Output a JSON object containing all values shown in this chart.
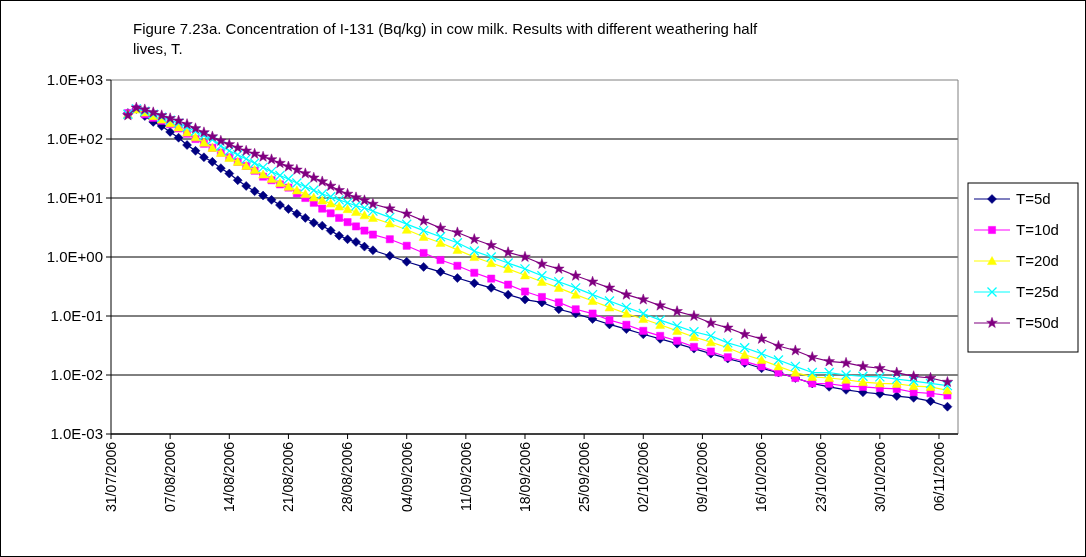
{
  "chart_data": {
    "type": "line",
    "title": "Figure 7.23a. Concentration of I-131 (Bq/kg) in cow milk. Results with different weathering half lives, T.",
    "x": [
      "2006-08-02",
      "2006-08-03",
      "2006-08-04",
      "2006-08-05",
      "2006-08-06",
      "2006-08-07",
      "2006-08-08",
      "2006-08-09",
      "2006-08-10",
      "2006-08-11",
      "2006-08-12",
      "2006-08-13",
      "2006-08-14",
      "2006-08-15",
      "2006-08-16",
      "2006-08-17",
      "2006-08-18",
      "2006-08-19",
      "2006-08-20",
      "2006-08-21",
      "2006-08-22",
      "2006-08-23",
      "2006-08-24",
      "2006-08-25",
      "2006-08-26",
      "2006-08-27",
      "2006-08-28",
      "2006-08-29",
      "2006-08-30",
      "2006-08-31",
      "2006-09-02",
      "2006-09-04",
      "2006-09-06",
      "2006-09-08",
      "2006-09-10",
      "2006-09-12",
      "2006-09-14",
      "2006-09-16",
      "2006-09-18",
      "2006-09-20",
      "2006-09-22",
      "2006-09-24",
      "2006-09-26",
      "2006-09-28",
      "2006-09-30",
      "2006-10-02",
      "2006-10-04",
      "2006-10-06",
      "2006-10-08",
      "2006-10-10",
      "2006-10-12",
      "2006-10-14",
      "2006-10-16",
      "2006-10-18",
      "2006-10-20",
      "2006-10-22",
      "2006-10-24",
      "2006-10-26",
      "2006-10-28",
      "2006-10-30",
      "2006-11-01",
      "2006-11-03",
      "2006-11-05",
      "2006-11-07"
    ],
    "series": [
      {
        "name": "T=5d",
        "color": "#000080",
        "marker": "diamond",
        "values": [
          275,
          324,
          245,
          195,
          166,
          132,
          105,
          79,
          63,
          49,
          41,
          32,
          26,
          20,
          16,
          13,
          11,
          9.3,
          7.6,
          6.5,
          5.4,
          4.6,
          3.8,
          3.4,
          2.8,
          2.3,
          2.0,
          1.8,
          1.5,
          1.3,
          1.05,
          0.83,
          0.68,
          0.56,
          0.44,
          0.36,
          0.3,
          0.23,
          0.19,
          0.17,
          0.13,
          0.11,
          0.089,
          0.072,
          0.06,
          0.049,
          0.041,
          0.034,
          0.028,
          0.023,
          0.019,
          0.016,
          0.013,
          0.011,
          0.0089,
          0.0072,
          0.0063,
          0.0056,
          0.0051,
          0.0048,
          0.0044,
          0.0041,
          0.0036,
          0.0029
        ]
      },
      {
        "name": "T=10d",
        "color": "#ff00ff",
        "marker": "square",
        "values": [
          275,
          324,
          263,
          229,
          204,
          178,
          151,
          123,
          100,
          83,
          71,
          59,
          49,
          41,
          35,
          29,
          23,
          20,
          17,
          15,
          12,
          10,
          8.3,
          6.6,
          5.5,
          4.6,
          3.9,
          3.3,
          2.8,
          2.4,
          2.0,
          1.55,
          1.17,
          0.89,
          0.71,
          0.54,
          0.43,
          0.34,
          0.26,
          0.21,
          0.17,
          0.13,
          0.11,
          0.085,
          0.071,
          0.056,
          0.046,
          0.038,
          0.03,
          0.025,
          0.02,
          0.017,
          0.014,
          0.011,
          0.0089,
          0.0072,
          0.0071,
          0.0065,
          0.0063,
          0.006,
          0.0058,
          0.0051,
          0.0049,
          0.0045
        ]
      },
      {
        "name": "T=20d",
        "color": "#ffff00",
        "marker": "triangle",
        "values": [
          263,
          316,
          282,
          245,
          214,
          186,
          158,
          129,
          107,
          87,
          71,
          58,
          48,
          41,
          35,
          30,
          25,
          21,
          18,
          15.5,
          13.5,
          11.7,
          10.2,
          9.1,
          8.1,
          7.2,
          6.5,
          5.8,
          5.1,
          4.6,
          3.7,
          2.9,
          2.2,
          1.74,
          1.32,
          1.0,
          0.79,
          0.63,
          0.49,
          0.38,
          0.3,
          0.23,
          0.18,
          0.14,
          0.11,
          0.089,
          0.071,
          0.056,
          0.044,
          0.036,
          0.029,
          0.022,
          0.018,
          0.014,
          0.011,
          0.0093,
          0.0089,
          0.0083,
          0.0076,
          0.0072,
          0.0071,
          0.0065,
          0.0063,
          0.0055
        ]
      },
      {
        "name": "T=25d",
        "color": "#00ffff",
        "marker": "cross",
        "values": [
          263,
          324,
          295,
          263,
          234,
          209,
          186,
          158,
          135,
          115,
          98,
          76,
          63,
          54,
          46,
          39,
          33,
          28,
          24,
          21,
          18,
          15.5,
          13.5,
          11.7,
          10.5,
          9.3,
          8.3,
          7.4,
          6.8,
          6.0,
          4.7,
          3.6,
          2.8,
          2.2,
          1.74,
          1.26,
          1.0,
          0.79,
          0.63,
          0.48,
          0.38,
          0.3,
          0.23,
          0.18,
          0.14,
          0.11,
          0.085,
          0.068,
          0.054,
          0.046,
          0.035,
          0.029,
          0.023,
          0.018,
          0.014,
          0.011,
          0.011,
          0.01,
          0.0095,
          0.0093,
          0.0085,
          0.0079,
          0.0072,
          0.0066
        ]
      },
      {
        "name": "T=50d",
        "color": "#800080",
        "marker": "star",
        "values": [
          251,
          339,
          316,
          282,
          251,
          224,
          204,
          178,
          151,
          129,
          110,
          93,
          81,
          71,
          63,
          56,
          50,
          45,
          39,
          34,
          30,
          26,
          22,
          19,
          16,
          13.5,
          11.7,
          10.2,
          9.1,
          7.9,
          6.6,
          5.4,
          4.1,
          3.1,
          2.6,
          2.0,
          1.58,
          1.2,
          1.0,
          0.76,
          0.63,
          0.48,
          0.38,
          0.3,
          0.23,
          0.19,
          0.15,
          0.12,
          0.1,
          0.076,
          0.063,
          0.049,
          0.041,
          0.031,
          0.026,
          0.02,
          0.017,
          0.016,
          0.014,
          0.013,
          0.011,
          0.0095,
          0.0089,
          0.0076
        ]
      }
    ],
    "log": "y",
    "grid": "y",
    "legend": "right",
    "line_style": "solid",
    "ylim": [
      0.001,
      1000
    ],
    "yticks": [
      {
        "value": 0.001,
        "label": "1.0E-03"
      },
      {
        "value": 0.01,
        "label": "1.0E-02"
      },
      {
        "value": 0.1,
        "label": "1.0E-01"
      },
      {
        "value": 1,
        "label": "1.0E+00"
      },
      {
        "value": 10,
        "label": "1.0E+01"
      },
      {
        "value": 100,
        "label": "1.0E+02"
      },
      {
        "value": 1000,
        "label": "1.0E+03"
      }
    ],
    "xlim": [
      "2006-07-31",
      "2006-11-08T06:00"
    ],
    "xticks": [
      {
        "value": "2006-07-31",
        "label": "31/07/2006"
      },
      {
        "value": "2006-08-07",
        "label": "07/08/2006"
      },
      {
        "value": "2006-08-14",
        "label": "14/08/2006"
      },
      {
        "value": "2006-08-21",
        "label": "21/08/2006"
      },
      {
        "value": "2006-08-28",
        "label": "28/08/2006"
      },
      {
        "value": "2006-09-04",
        "label": "04/09/2006"
      },
      {
        "value": "2006-09-11",
        "label": "11/09/2006"
      },
      {
        "value": "2006-09-18",
        "label": "18/09/2006"
      },
      {
        "value": "2006-09-25",
        "label": "25/09/2006"
      },
      {
        "value": "2006-10-02",
        "label": "02/10/2006"
      },
      {
        "value": "2006-10-09",
        "label": "09/10/2006"
      },
      {
        "value": "2006-10-16",
        "label": "16/10/2006"
      },
      {
        "value": "2006-10-23",
        "label": "23/10/2006"
      },
      {
        "value": "2006-10-30",
        "label": "30/10/2006"
      },
      {
        "value": "2006-11-06",
        "label": "06/11/2006"
      }
    ]
  }
}
